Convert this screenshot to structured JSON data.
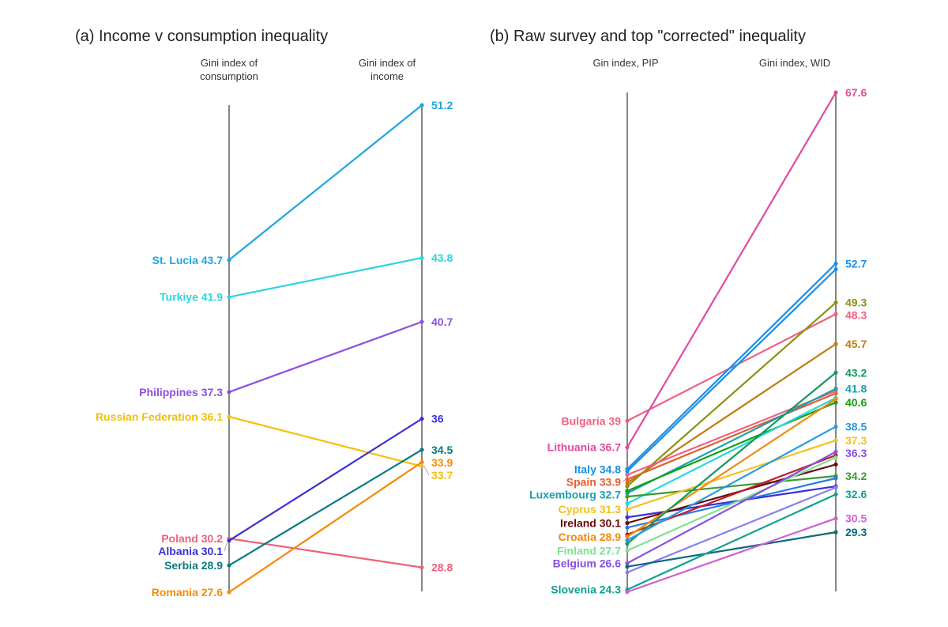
{
  "chart_data": [
    {
      "type": "line",
      "title": "(a) Income v consumption inequality",
      "left_axis_label": [
        "Gini index of",
        "consumption"
      ],
      "right_axis_label": [
        "Gini index of",
        "income"
      ],
      "ylim": [
        27,
        52
      ],
      "series": [
        {
          "name": "St. Lucia",
          "left": 43.7,
          "right": 51.2,
          "color": "#1ea5e0"
        },
        {
          "name": "Turkiye",
          "left": 41.9,
          "right": 43.8,
          "color": "#2dd4e0"
        },
        {
          "name": "Philippines",
          "left": 37.3,
          "right": 40.7,
          "color": "#8e4fe0"
        },
        {
          "name": "Russian Federation",
          "left": 36.1,
          "right": 33.7,
          "color": "#f5c000"
        },
        {
          "name": "Poland",
          "left": 30.2,
          "right": 28.8,
          "color": "#f0607a"
        },
        {
          "name": "Albania",
          "left": 30.1,
          "right": 36,
          "color": "#3a2fd6"
        },
        {
          "name": "Serbia",
          "left": 28.9,
          "right": 34.5,
          "color": "#0b7a80"
        },
        {
          "name": "Romania",
          "left": 27.6,
          "right": 33.9,
          "color": "#f58a0a"
        }
      ]
    },
    {
      "type": "line",
      "title": "(b) Raw survey and top \"corrected\" inequality",
      "left_axis_label": [
        "Gin index, PIP"
      ],
      "right_axis_label": [
        "Gini index, WID"
      ],
      "ylim": [
        24,
        68
      ],
      "series": [
        {
          "name": "Bulgaria",
          "left": 39,
          "right": 48.3,
          "color": "#f06080",
          "right_label": true
        },
        {
          "name": "Lithuania",
          "left": 36.7,
          "right": 67.6,
          "color": "#e04aa0",
          "right_label": true
        },
        {
          "name": "Italy",
          "left": 34.8,
          "right": 52.7,
          "color": "#1a8fe8",
          "right_label": true
        },
        {
          "left": 34.6,
          "right": 52.2,
          "color": "#1a8fe8"
        },
        {
          "name": "Spain",
          "left": 33.9,
          "right": 41.4,
          "color": "#e06030"
        },
        {
          "left": 33.3,
          "right": 49.3,
          "color": "#8a9010",
          "right_label": true
        },
        {
          "left": 33.6,
          "right": 45.7,
          "color": "#c07a10",
          "right_label": true
        },
        {
          "left": 34.3,
          "right": 41.6,
          "color": "#f06080"
        },
        {
          "name": "Luxembourg",
          "left": 32.7,
          "right": 41.8,
          "color": "#1a9fb0",
          "right_label": true
        },
        {
          "left": 32.9,
          "right": 40.6,
          "color": "#10a010",
          "right_label": true
        },
        {
          "left": 31.8,
          "right": 41.0,
          "color": "#2dd4e0"
        },
        {
          "left": 32.4,
          "right": 34.2,
          "color": "#3a9a30",
          "right_label": true
        },
        {
          "name": "Cyprus",
          "left": 31.3,
          "right": 37.3,
          "color": "#f5c020",
          "right_label": true
        },
        {
          "left": 30.6,
          "right": 33.3,
          "color": "#3a2fd6"
        },
        {
          "name": "Ireland",
          "left": 30.1,
          "right": 35.2,
          "color": "#6a0a0a"
        },
        {
          "left": 29.7,
          "right": 34.0,
          "color": "#2a7ae8"
        },
        {
          "left": 29.1,
          "right": 36.0,
          "color": "#c02030"
        },
        {
          "name": "Croatia",
          "left": 28.9,
          "right": 40.9,
          "color": "#f58a0a"
        },
        {
          "left": 28.3,
          "right": 43.2,
          "color": "#109a60",
          "right_label": true
        },
        {
          "left": 28.6,
          "right": 38.5,
          "color": "#2a9ae0",
          "right_label": true
        },
        {
          "name": "Finland",
          "left": 27.7,
          "right": 35.8,
          "color": "#80e090"
        },
        {
          "name": "Belgium",
          "left": 26.6,
          "right": 36.3,
          "color": "#8a4fe0",
          "right_label": true
        },
        {
          "left": 25.8,
          "right": 33.2,
          "color": "#8a80f0"
        },
        {
          "left": 26.3,
          "right": 29.3,
          "color": "#0a6a7a",
          "right_label": true
        },
        {
          "name": "Slovenia",
          "left": 24.3,
          "right": 32.6,
          "color": "#10a090",
          "right_label": true
        },
        {
          "left": 24.1,
          "right": 30.5,
          "color": "#d060d0",
          "right_label": true
        }
      ]
    }
  ]
}
